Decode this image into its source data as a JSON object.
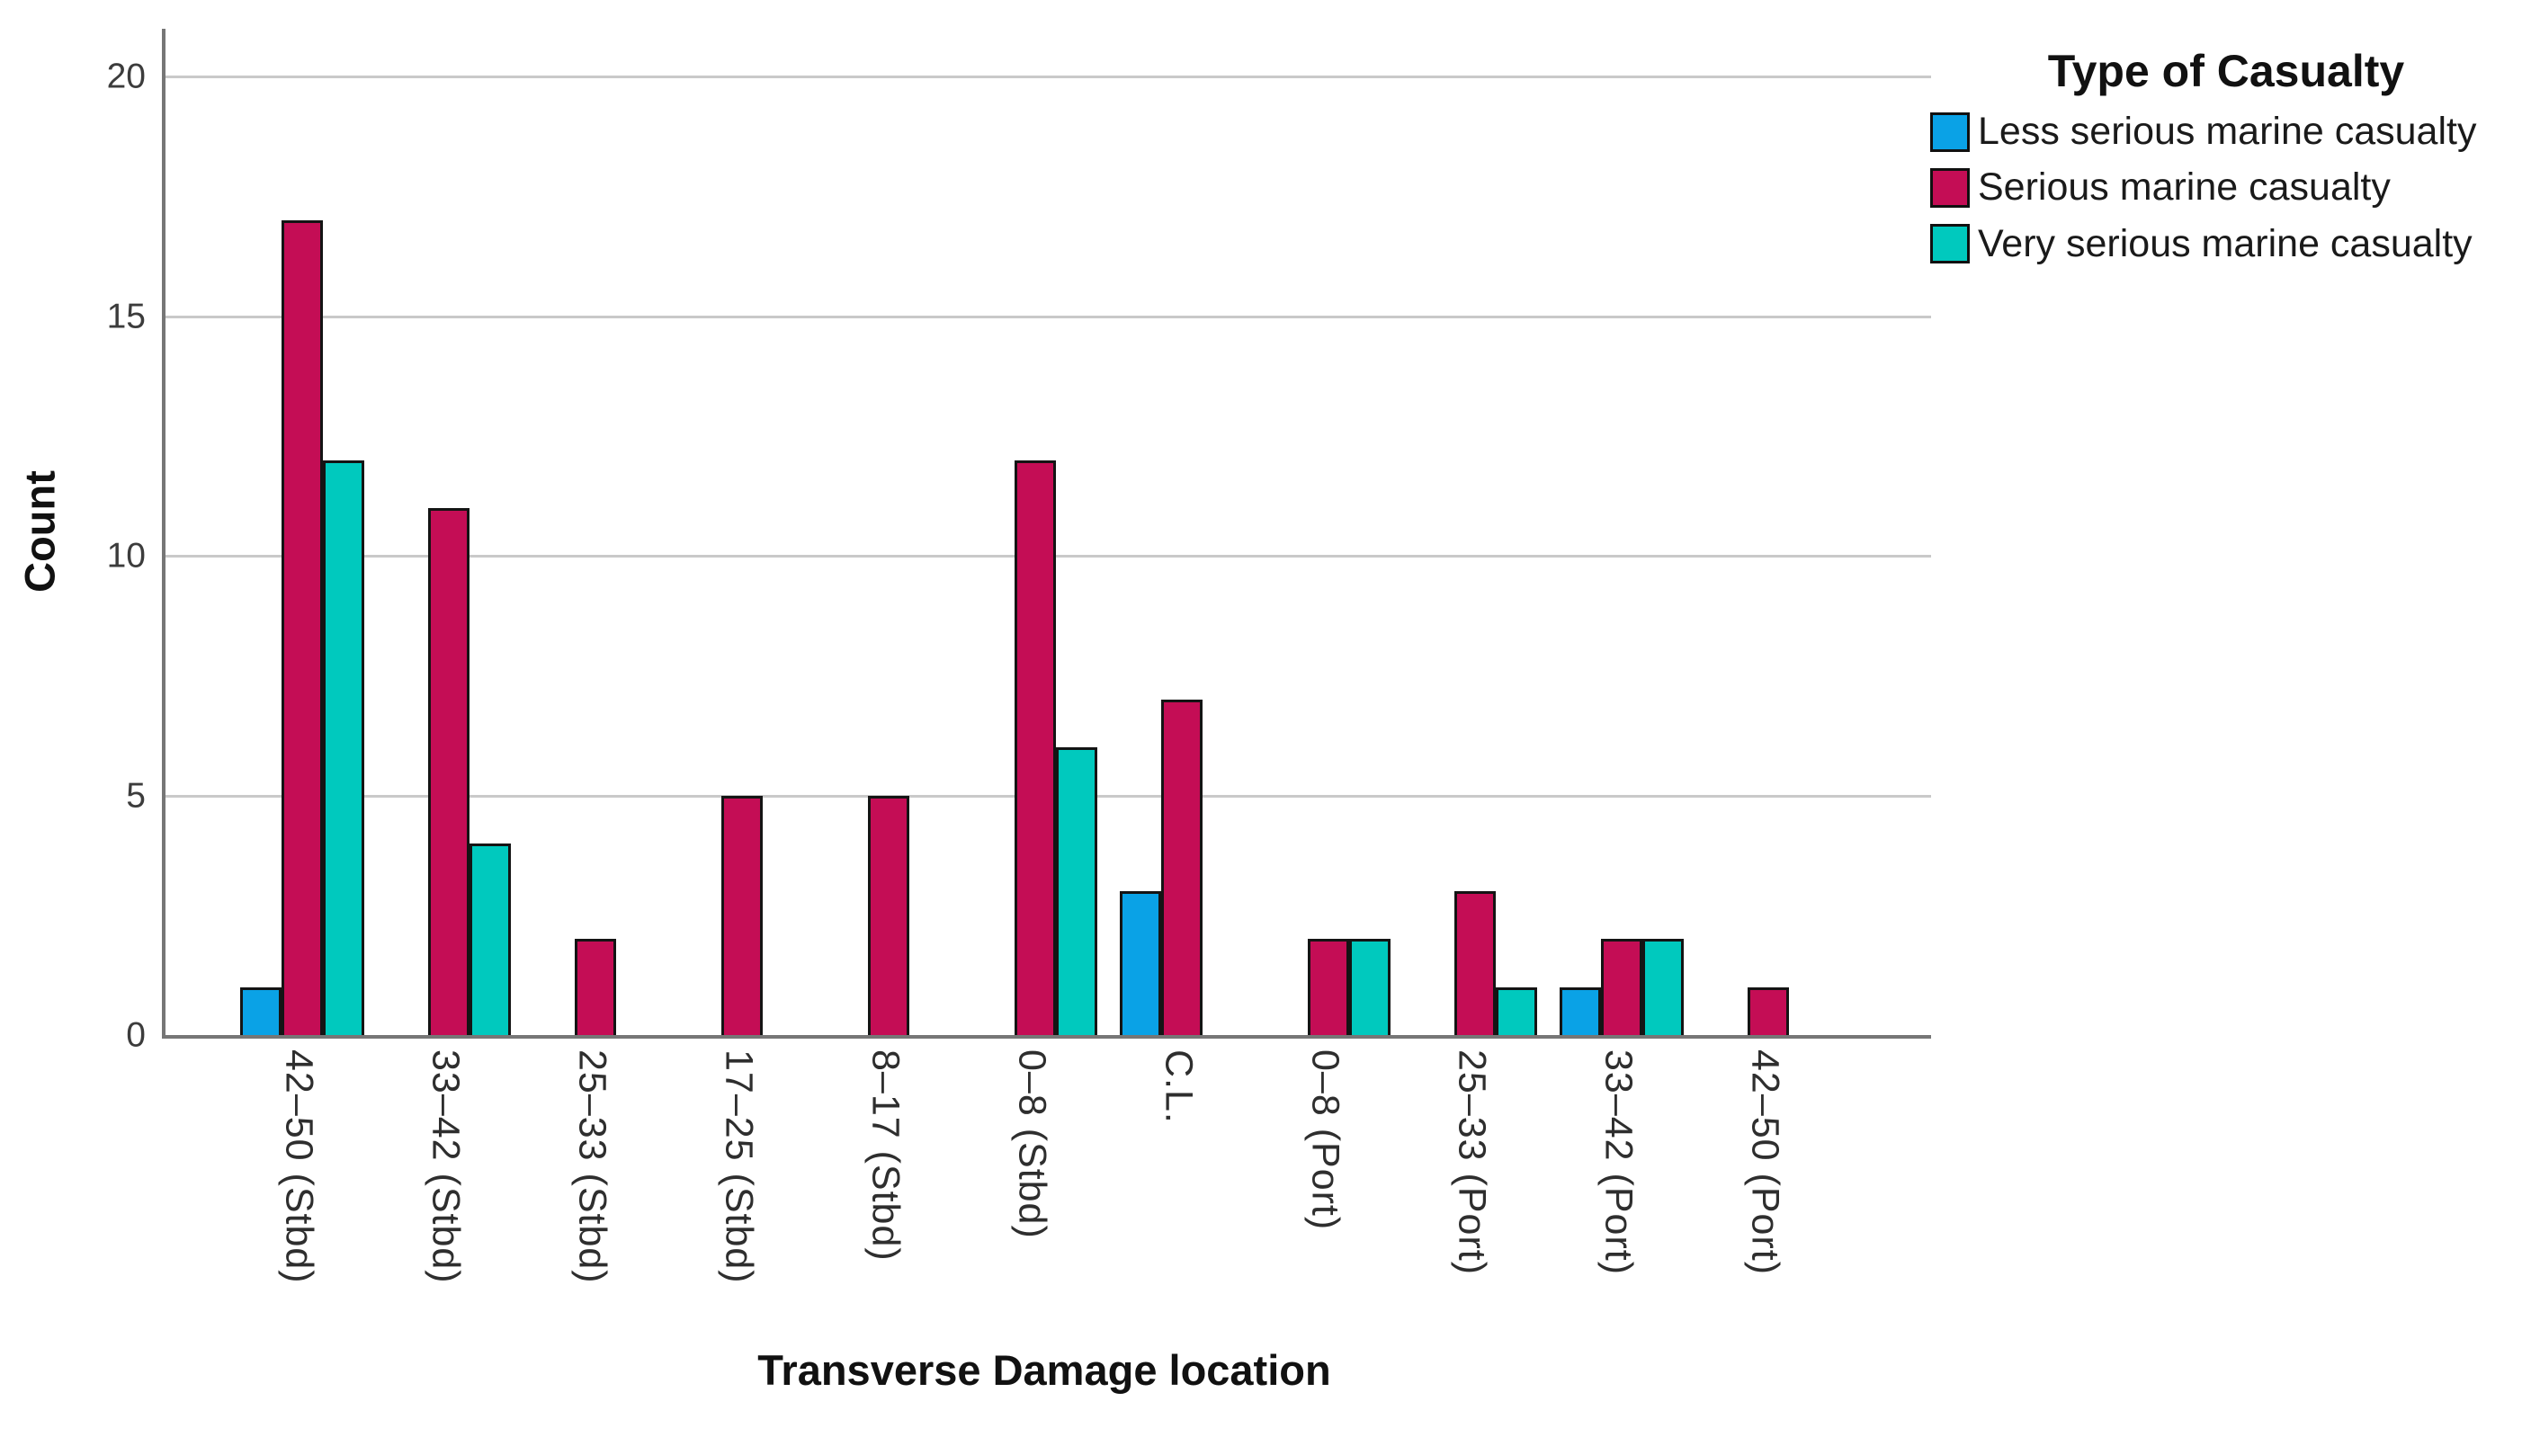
{
  "chart_data": {
    "type": "bar",
    "title": "",
    "legend_title": "Type of Casualty",
    "xlabel": "Transverse Damage location",
    "ylabel": "Count",
    "categories": [
      "42–50 (Stbd)",
      "33–42 (Stbd)",
      "25–33 (Stbd)",
      "17–25 (Stbd)",
      "8–17 (Stbd)",
      "0–8 (Stbd)",
      "C.L.",
      "0–8 (Port)",
      "25–33 (Port)",
      "33–42 (Port)",
      "42–50 (Port)"
    ],
    "series": [
      {
        "name": "Less serious marine casualty",
        "color": "#0AA2E6",
        "values": [
          1,
          0,
          0,
          0,
          0,
          0,
          3,
          0,
          0,
          1,
          0
        ]
      },
      {
        "name": "Serious marine casualty",
        "color": "#C40D55",
        "values": [
          17,
          11,
          2,
          5,
          5,
          12,
          7,
          2,
          3,
          2,
          1
        ]
      },
      {
        "name": "Very serious marine casualty",
        "color": "#00C9BE",
        "values": [
          12,
          4,
          0,
          0,
          0,
          6,
          0,
          2,
          1,
          2,
          0
        ]
      }
    ],
    "ylim": [
      0,
      21
    ],
    "yticks": [
      0,
      5,
      10,
      15,
      20
    ],
    "grid": "horizontal",
    "legend_position": "top-right"
  }
}
